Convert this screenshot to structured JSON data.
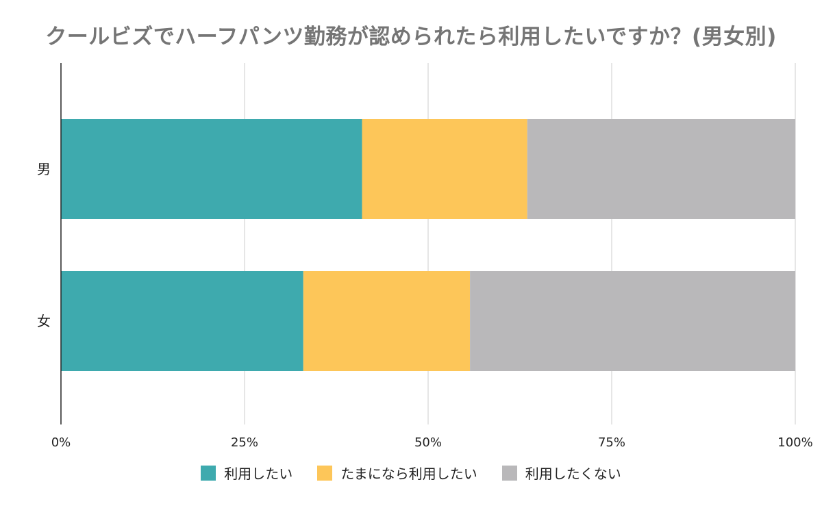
{
  "chart_data": {
    "type": "bar",
    "orientation": "horizontal",
    "stacked": "percent",
    "title": "クールビズでハーフパンツ勤務が認められたら利用したいですか？(男女別)",
    "categories": [
      "男",
      "女"
    ],
    "series": [
      {
        "name": "利用したい",
        "color": "#3eaaae",
        "values": [
          41,
          33
        ]
      },
      {
        "name": "たまになら利用したい",
        "color": "#fdc659",
        "values": [
          22.5,
          22.7
        ]
      },
      {
        "name": "利用したくない",
        "color": "#b9b8ba",
        "values": [
          36.5,
          44.3
        ]
      }
    ],
    "xlim": [
      0,
      100
    ],
    "x_ticks": [
      0,
      25,
      50,
      75,
      100
    ],
    "x_tick_labels": [
      "0%",
      "25%",
      "50%",
      "75%",
      "100%"
    ],
    "grid": true,
    "legend_position": "bottom"
  }
}
